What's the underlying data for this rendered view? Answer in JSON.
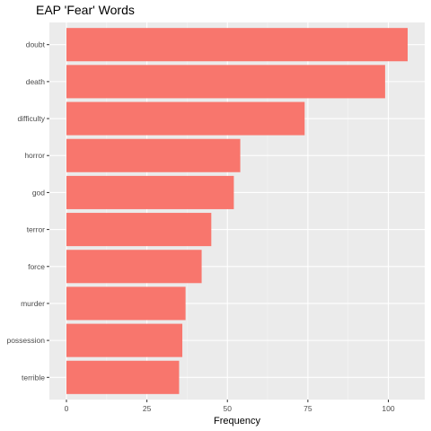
{
  "chart_data": {
    "type": "bar",
    "orientation": "horizontal",
    "title": "EAP 'Fear' Words",
    "xlabel": "Frequency",
    "ylabel": "",
    "categories": [
      "doubt",
      "death",
      "difficulty",
      "horror",
      "god",
      "terror",
      "force",
      "murder",
      "possession",
      "terrible"
    ],
    "values": [
      106,
      99,
      74,
      54,
      52,
      45,
      42,
      37,
      36,
      35
    ],
    "xlim": [
      -5.3,
      111.3
    ],
    "xticks": [
      0,
      25,
      50,
      75,
      100
    ],
    "xtick_labels": [
      "0",
      "25",
      "50",
      "75",
      "100"
    ],
    "grid": true,
    "legend": "none",
    "colors": {
      "bar": "#F8766D",
      "panel": "#EBEBEB",
      "grid_major": "#FFFFFF",
      "grid_minor": "#F5F5F5",
      "tick_text": "#4D4D4D",
      "tick_mark": "#333333"
    }
  }
}
